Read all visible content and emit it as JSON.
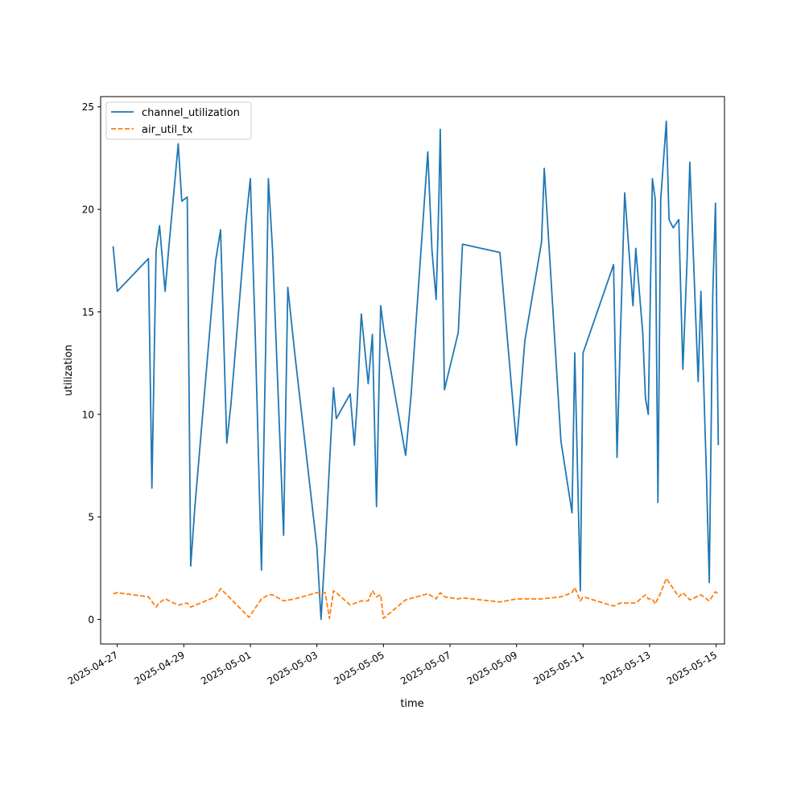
{
  "chart_data": {
    "type": "line",
    "title": "",
    "xlabel": "time",
    "ylabel": "utilization",
    "xlim": [
      "2025-04-26T12:00",
      "2025-05-15T06:00"
    ],
    "ylim": [
      -1.2,
      25.5
    ],
    "x_ticks": [
      "2025-04-27",
      "2025-04-29",
      "2025-05-01",
      "2025-05-03",
      "2025-05-05",
      "2025-05-07",
      "2025-05-09",
      "2025-05-11",
      "2025-05-13",
      "2025-05-15"
    ],
    "y_ticks": [
      0,
      5,
      10,
      15,
      20,
      25
    ],
    "grid": false,
    "legend_position": "upper left",
    "series": [
      {
        "name": "channel_utilization",
        "color": "#1f77b4",
        "dash": "solid",
        "points": [
          [
            "2025-04-26T21:00",
            18.2
          ],
          [
            "2025-04-27T00:00",
            16.0
          ],
          [
            "2025-04-27T22:30",
            17.6
          ],
          [
            "2025-04-28T01:00",
            6.4
          ],
          [
            "2025-04-28T04:00",
            18.0
          ],
          [
            "2025-04-28T06:30",
            19.2
          ],
          [
            "2025-04-28T10:30",
            16.0
          ],
          [
            "2025-04-28T13:00",
            18.0
          ],
          [
            "2025-04-28T20:00",
            23.2
          ],
          [
            "2025-04-28T22:30",
            20.4
          ],
          [
            "2025-04-29T02:30",
            20.6
          ],
          [
            "2025-04-29T05:00",
            2.6
          ],
          [
            "2025-04-29T08:00",
            5.5
          ],
          [
            "2025-04-29T23:00",
            17.5
          ],
          [
            "2025-04-30T02:30",
            19.0
          ],
          [
            "2025-04-30T07:00",
            8.6
          ],
          [
            "2025-04-30T10:00",
            10.5
          ],
          [
            "2025-04-30T21:00",
            19.5
          ],
          [
            "2025-05-01T00:00",
            21.5
          ],
          [
            "2025-05-01T03:30",
            14.0
          ],
          [
            "2025-05-01T08:00",
            2.4
          ],
          [
            "2025-05-01T11:00",
            13.0
          ],
          [
            "2025-05-01T13:00",
            21.5
          ],
          [
            "2025-05-01T16:00",
            18.0
          ],
          [
            "2025-05-02T00:00",
            4.1
          ],
          [
            "2025-05-02T03:00",
            16.2
          ],
          [
            "2025-05-02T08:00",
            13.0
          ],
          [
            "2025-05-03T00:00",
            3.5
          ],
          [
            "2025-05-03T03:00",
            0.0
          ],
          [
            "2025-05-03T06:00",
            3.5
          ],
          [
            "2025-05-03T09:00",
            7.5
          ],
          [
            "2025-05-03T12:00",
            11.3
          ],
          [
            "2025-05-03T14:00",
            9.8
          ],
          [
            "2025-05-04T00:00",
            11.0
          ],
          [
            "2025-05-04T03:00",
            8.5
          ],
          [
            "2025-05-04T05:00",
            10.5
          ],
          [
            "2025-05-04T08:00",
            14.9
          ],
          [
            "2025-05-04T13:00",
            11.5
          ],
          [
            "2025-05-04T16:00",
            13.9
          ],
          [
            "2025-05-04T19:00",
            5.5
          ],
          [
            "2025-05-04T22:00",
            15.3
          ],
          [
            "2025-05-05T00:30",
            14.0
          ],
          [
            "2025-05-05T16:00",
            8.0
          ],
          [
            "2025-05-05T20:00",
            11.0
          ],
          [
            "2025-05-06T00:00",
            15.0
          ],
          [
            "2025-05-06T08:00",
            22.8
          ],
          [
            "2025-05-06T11:00",
            18.0
          ],
          [
            "2025-05-06T14:00",
            15.6
          ],
          [
            "2025-05-06T16:00",
            20.5
          ],
          [
            "2025-05-06T17:00",
            23.9
          ],
          [
            "2025-05-06T20:00",
            11.2
          ],
          [
            "2025-05-07T06:00",
            14.0
          ],
          [
            "2025-05-07T09:00",
            18.3
          ],
          [
            "2025-05-08T12:00",
            17.9
          ],
          [
            "2025-05-09T00:00",
            8.5
          ],
          [
            "2025-05-09T06:00",
            13.6
          ],
          [
            "2025-05-09T18:00",
            18.4
          ],
          [
            "2025-05-09T20:00",
            22.0
          ],
          [
            "2025-05-10T08:00",
            8.7
          ],
          [
            "2025-05-10T16:00",
            5.2
          ],
          [
            "2025-05-10T18:00",
            13.0
          ],
          [
            "2025-05-10T22:00",
            1.4
          ],
          [
            "2025-05-11T00:00",
            13.0
          ],
          [
            "2025-05-11T22:00",
            17.3
          ],
          [
            "2025-05-12T00:30",
            7.9
          ],
          [
            "2025-05-12T03:00",
            14.0
          ],
          [
            "2025-05-12T06:00",
            20.8
          ],
          [
            "2025-05-12T12:00",
            15.3
          ],
          [
            "2025-05-12T14:00",
            18.1
          ],
          [
            "2025-05-12T19:00",
            14.0
          ],
          [
            "2025-05-12T21:00",
            10.8
          ],
          [
            "2025-05-12T23:00",
            10.0
          ],
          [
            "2025-05-13T02:00",
            21.5
          ],
          [
            "2025-05-13T04:00",
            20.5
          ],
          [
            "2025-05-13T06:00",
            5.7
          ],
          [
            "2025-05-13T08:00",
            20.5
          ],
          [
            "2025-05-13T12:00",
            24.3
          ],
          [
            "2025-05-13T14:00",
            19.5
          ],
          [
            "2025-05-13T17:00",
            19.1
          ],
          [
            "2025-05-13T21:00",
            19.5
          ],
          [
            "2025-05-14T00:00",
            12.2
          ],
          [
            "2025-05-14T03:00",
            17.5
          ],
          [
            "2025-05-14T05:00",
            22.3
          ],
          [
            "2025-05-14T11:00",
            11.6
          ],
          [
            "2025-05-14T13:00",
            16.0
          ],
          [
            "2025-05-14T17:00",
            7.0
          ],
          [
            "2025-05-14T19:00",
            1.8
          ],
          [
            "2025-05-14T21:30",
            15.8
          ],
          [
            "2025-05-14T23:30",
            20.3
          ],
          [
            "2025-05-15T01:30",
            8.5
          ]
        ]
      },
      {
        "name": "air_util_tx",
        "color": "#ff7f0e",
        "dash": "dashed",
        "points": [
          [
            "2025-04-26T21:00",
            1.25
          ],
          [
            "2025-04-27T00:00",
            1.3
          ],
          [
            "2025-04-27T22:30",
            1.1
          ],
          [
            "2025-04-28T04:00",
            0.6
          ],
          [
            "2025-04-28T06:00",
            0.8
          ],
          [
            "2025-04-28T10:30",
            1.0
          ],
          [
            "2025-04-28T20:00",
            0.7
          ],
          [
            "2025-04-29T02:30",
            0.8
          ],
          [
            "2025-04-29T05:00",
            0.6
          ],
          [
            "2025-04-29T23:00",
            1.1
          ],
          [
            "2025-04-30T02:30",
            1.5
          ],
          [
            "2025-04-30T07:00",
            1.2
          ],
          [
            "2025-04-30T23:00",
            0.1
          ],
          [
            "2025-05-01T08:00",
            1.0
          ],
          [
            "2025-05-01T13:00",
            1.2
          ],
          [
            "2025-05-01T16:00",
            1.2
          ],
          [
            "2025-05-02T00:00",
            0.9
          ],
          [
            "2025-05-02T08:00",
            1.0
          ],
          [
            "2025-05-03T00:00",
            1.3
          ],
          [
            "2025-05-03T06:00",
            1.3
          ],
          [
            "2025-05-03T09:00",
            0.05
          ],
          [
            "2025-05-03T12:00",
            1.4
          ],
          [
            "2025-05-03T14:00",
            1.3
          ],
          [
            "2025-05-04T00:00",
            0.7
          ],
          [
            "2025-05-04T08:00",
            0.9
          ],
          [
            "2025-05-04T13:00",
            0.9
          ],
          [
            "2025-05-04T16:00",
            1.4
          ],
          [
            "2025-05-04T19:00",
            1.1
          ],
          [
            "2025-05-04T22:00",
            1.2
          ],
          [
            "2025-05-05T00:00",
            0.05
          ],
          [
            "2025-05-05T16:00",
            0.95
          ],
          [
            "2025-05-06T08:00",
            1.25
          ],
          [
            "2025-05-06T14:00",
            1.0
          ],
          [
            "2025-05-06T17:00",
            1.3
          ],
          [
            "2025-05-06T20:00",
            1.1
          ],
          [
            "2025-05-07T06:00",
            1.0
          ],
          [
            "2025-05-07T09:00",
            1.05
          ],
          [
            "2025-05-08T12:00",
            0.85
          ],
          [
            "2025-05-09T00:00",
            1.0
          ],
          [
            "2025-05-09T06:00",
            1.0
          ],
          [
            "2025-05-09T18:00",
            1.0
          ],
          [
            "2025-05-10T08:00",
            1.1
          ],
          [
            "2025-05-10T16:00",
            1.3
          ],
          [
            "2025-05-10T18:00",
            1.55
          ],
          [
            "2025-05-10T22:00",
            0.9
          ],
          [
            "2025-05-11T00:00",
            1.1
          ],
          [
            "2025-05-11T22:00",
            0.65
          ],
          [
            "2025-05-12T03:00",
            0.8
          ],
          [
            "2025-05-12T14:00",
            0.8
          ],
          [
            "2025-05-12T21:00",
            1.2
          ],
          [
            "2025-05-12T23:00",
            1.0
          ],
          [
            "2025-05-13T02:00",
            1.0
          ],
          [
            "2025-05-13T04:00",
            0.75
          ],
          [
            "2025-05-13T08:00",
            1.3
          ],
          [
            "2025-05-13T12:00",
            2.0
          ],
          [
            "2025-05-13T21:00",
            1.1
          ],
          [
            "2025-05-14T00:00",
            1.3
          ],
          [
            "2025-05-14T05:00",
            0.95
          ],
          [
            "2025-05-14T13:00",
            1.2
          ],
          [
            "2025-05-14T19:00",
            0.9
          ],
          [
            "2025-05-14T23:30",
            1.35
          ],
          [
            "2025-05-15T01:30",
            1.25
          ]
        ]
      }
    ]
  }
}
